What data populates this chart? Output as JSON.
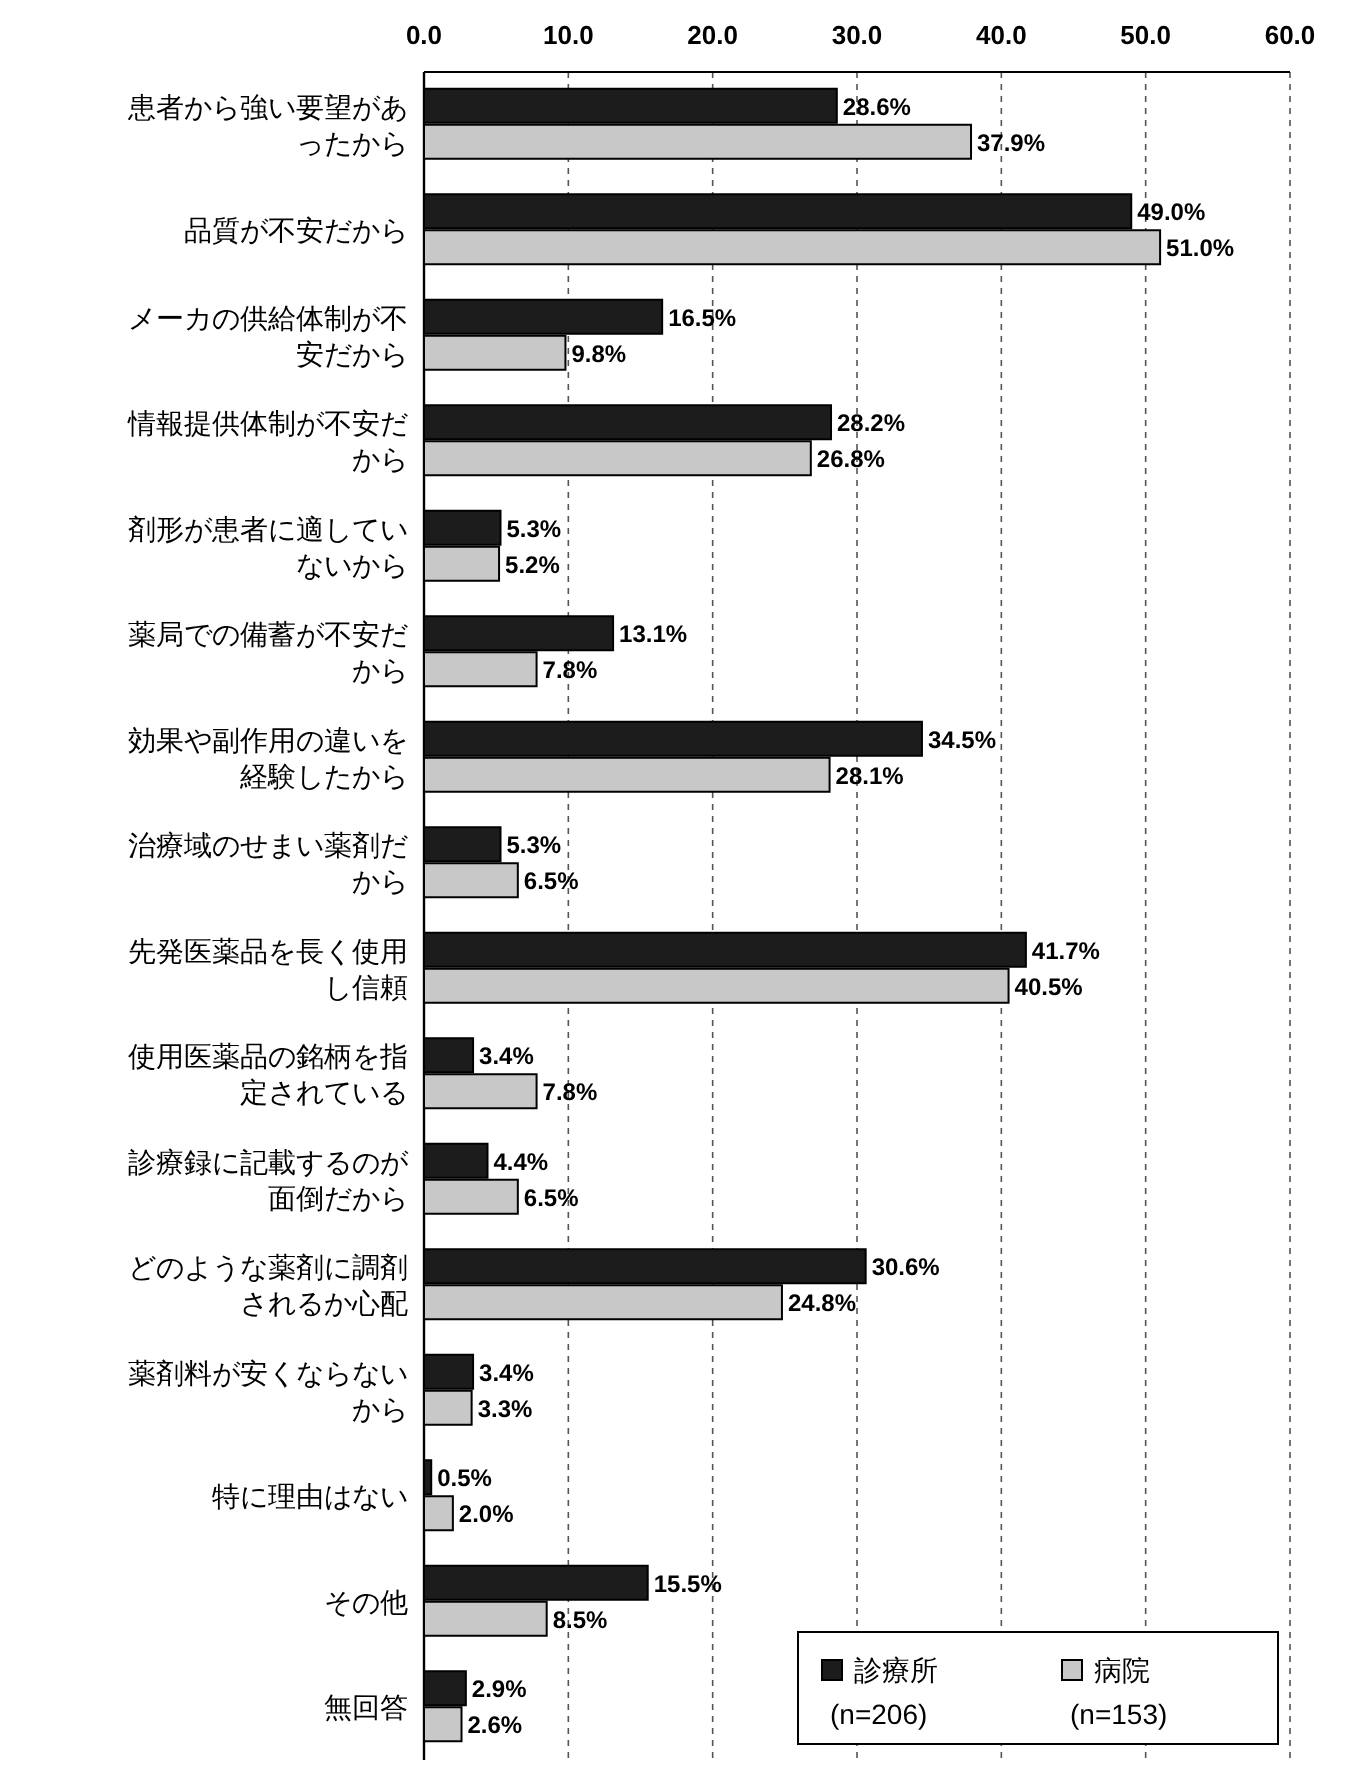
{
  "chart_data": {
    "type": "bar",
    "orientation": "horizontal",
    "categories": [
      "患者から強い要望があったから",
      "品質が不安だから",
      "メーカの供給体制が不安だから",
      "情報提供体制が不安だから",
      "剤形が患者に適していないから",
      "薬局での備蓄が不安だから",
      "効果や副作用の違いを経験したから",
      "治療域のせまい薬剤だから",
      "先発医薬品を長く使用し信頼",
      "使用医薬品の銘柄を指定されている",
      "診療録に記載するのが面倒だから",
      "どのような薬剤に調剤されるか心配",
      "薬剤料が安くならないから",
      "特に理由はない",
      "その他",
      "無回答"
    ],
    "series": [
      {
        "name": "診療所\n(n=206)",
        "color": "#1c1c1c",
        "values": [
          28.6,
          49.0,
          16.5,
          28.2,
          5.3,
          13.1,
          34.5,
          5.3,
          41.7,
          3.4,
          4.4,
          30.6,
          3.4,
          0.5,
          15.5,
          2.9
        ],
        "value_labels": [
          "28.6%",
          "49.0%",
          "16.5%",
          "28.2%",
          "5.3%",
          "13.1%",
          "34.5%",
          "5.3%",
          "41.7%",
          "3.4%",
          "4.4%",
          "30.6%",
          "3.4%",
          "0.5%",
          "15.5%",
          "2.9%"
        ]
      },
      {
        "name": "病院\n(n=153)",
        "color": "#c8c8c8",
        "values": [
          37.9,
          51.0,
          9.8,
          26.8,
          5.2,
          7.8,
          28.1,
          6.5,
          40.5,
          7.8,
          6.5,
          24.8,
          3.3,
          2.0,
          8.5,
          2.6
        ],
        "value_labels": [
          "37.9%",
          "51.0%",
          "9.8%",
          "26.8%",
          "5.2%",
          "7.8%",
          "28.1%",
          "6.5%",
          "40.5%",
          "7.8%",
          "6.5%",
          "24.8%",
          "3.3%",
          "2.0%",
          "8.5%",
          "2.6%"
        ]
      }
    ],
    "xlim": [
      0,
      60
    ],
    "xticks": [
      {
        "value": 0,
        "label": "0.0"
      },
      {
        "value": 10,
        "label": "10.0"
      },
      {
        "value": 20,
        "label": "20.0"
      },
      {
        "value": 30,
        "label": "30.0"
      },
      {
        "value": 40,
        "label": "40.0"
      },
      {
        "value": 50,
        "label": "50.0"
      },
      {
        "value": 60,
        "label": "60.0"
      }
    ],
    "grid": "x",
    "legend": "bottom right"
  }
}
